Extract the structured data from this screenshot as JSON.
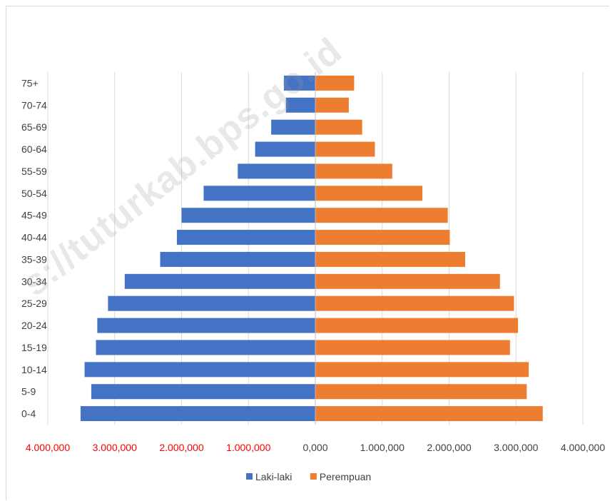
{
  "chart_data": {
    "type": "bar",
    "orientation": "horizontal",
    "layout": "population-pyramid",
    "categories": [
      "0-4",
      "5-9",
      "10-14",
      "15-19",
      "20-24",
      "25-29",
      "30-34",
      "35-39",
      "40-44",
      "45-49",
      "50-54",
      "55-59",
      "60-64",
      "65-69",
      "70-74",
      "75+"
    ],
    "series": [
      {
        "name": "Laki-laki",
        "color": "#4472C4",
        "values": [
          3510000,
          3350000,
          3450000,
          3280000,
          3260000,
          3100000,
          2850000,
          2320000,
          2070000,
          2000000,
          1670000,
          1160000,
          900000,
          660000,
          440000,
          470000
        ]
      },
      {
        "name": "Perempuan",
        "color": "#ED7D31",
        "values": [
          3400000,
          3160000,
          3190000,
          2910000,
          3030000,
          2970000,
          2760000,
          2240000,
          2010000,
          1980000,
          1600000,
          1150000,
          890000,
          700000,
          500000,
          580000
        ]
      }
    ],
    "x_ticks": [
      "4.000,000",
      "3.000,000",
      "2.000,000",
      "1.000,000",
      "0,000",
      "1.000,000",
      "2.000,000",
      "3.000,000",
      "4.000,000"
    ],
    "x_tick_colors": [
      "#FF0000",
      "#FF0000",
      "#FF0000",
      "#FF0000",
      "#404040",
      "#404040",
      "#404040",
      "#404040",
      "#404040"
    ],
    "xlim": [
      -4000000,
      4000000
    ],
    "grid": true,
    "legend_position": "bottom"
  },
  "watermark": "s://tuturkab.bps.go.id"
}
